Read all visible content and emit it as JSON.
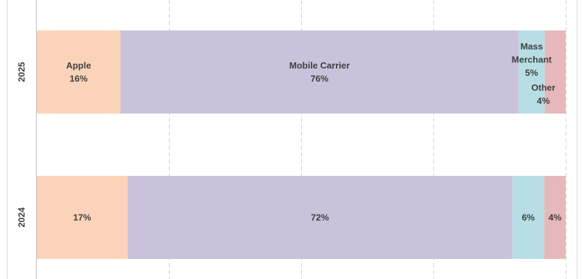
{
  "chart_data": {
    "type": "bar",
    "orientation": "horizontal",
    "stacked": true,
    "categories": [
      "2025",
      "2024"
    ],
    "xlim": [
      0,
      100
    ],
    "grid": true,
    "series": [
      {
        "name": "Apple",
        "values": [
          16,
          17
        ],
        "labels": [
          "Apple\n16%",
          "17%"
        ],
        "color": "#FBD3B8"
      },
      {
        "name": "Mobile Carrier",
        "values": [
          76,
          72
        ],
        "labels": [
          "Mobile Carrier\n76%",
          "72%"
        ],
        "color": "#CAC1DA"
      },
      {
        "name": "Mass Merchant",
        "values": [
          5,
          6
        ],
        "labels": [
          "Mass\nMerchant\n5%",
          "6%"
        ],
        "color": "#B7DEE5"
      },
      {
        "name": "Other",
        "values": [
          4,
          4
        ],
        "labels": [
          "Other\n4%",
          "4%"
        ],
        "color": "#E7B8B9"
      }
    ]
  }
}
